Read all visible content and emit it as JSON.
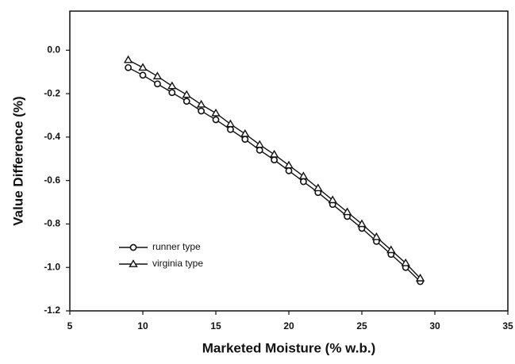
{
  "chart_data": {
    "type": "line",
    "x_label": "Marketed Moisture (% w.b.)",
    "y_label": "Value Difference (%)",
    "x": [
      9,
      10,
      11,
      12,
      13,
      14,
      15,
      16,
      17,
      18,
      19,
      20,
      21,
      22,
      23,
      24,
      25,
      26,
      27,
      28,
      29
    ],
    "series": [
      {
        "name": "runner type",
        "color": "#111111",
        "marker": "circle",
        "values": [
          -0.08,
          -0.115,
          -0.155,
          -0.195,
          -0.235,
          -0.28,
          -0.32,
          -0.365,
          -0.41,
          -0.46,
          -0.505,
          -0.555,
          -0.605,
          -0.655,
          -0.71,
          -0.765,
          -0.82,
          -0.88,
          -0.94,
          -1.0,
          -1.065
        ]
      },
      {
        "name": "virginia type",
        "color": "#111111",
        "marker": "triangle",
        "values": [
          -0.045,
          -0.08,
          -0.12,
          -0.165,
          -0.205,
          -0.25,
          -0.29,
          -0.34,
          -0.385,
          -0.435,
          -0.48,
          -0.53,
          -0.58,
          -0.635,
          -0.69,
          -0.745,
          -0.8,
          -0.86,
          -0.92,
          -0.98,
          -1.05
        ]
      }
    ],
    "xlim": [
      5,
      35
    ],
    "xticks": [
      5,
      10,
      15,
      20,
      25,
      30,
      35
    ],
    "ylim": [
      -1.2,
      0.18
    ],
    "yticks": [
      {
        "value": -1.2,
        "label": "-1.2"
      },
      {
        "value": -1.0,
        "label": "-1.0"
      },
      -0.8,
      -0.6,
      -0.4,
      -0.2,
      {
        "value": 0,
        "label": "0.0"
      }
    ],
    "legend": "lower left",
    "grid": false
  }
}
